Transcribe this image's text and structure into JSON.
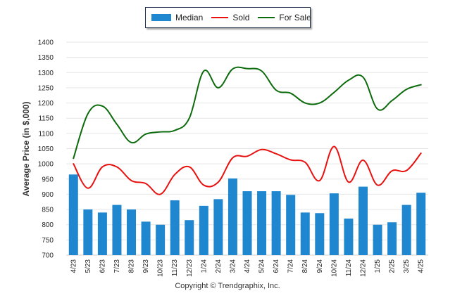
{
  "legend": {
    "median": "Median",
    "sold": "Sold",
    "for_sale": "For Sale"
  },
  "colors": {
    "median": "#1f87d0",
    "sold": "#e8110f",
    "for_sale": "#0c6b0c",
    "grid": "#e6e6e6"
  },
  "copyright": "Copyright © Trendgraphix, Inc.",
  "chart_data": {
    "type": "bar",
    "ylabel": "Average Price (in $,000)",
    "ylim": [
      700,
      1400
    ],
    "yticks": [
      700,
      750,
      800,
      850,
      900,
      950,
      1000,
      1050,
      1100,
      1150,
      1200,
      1250,
      1300,
      1350,
      1400
    ],
    "grid": true,
    "legend_position": "top-center",
    "categories": [
      "4/23",
      "5/23",
      "6/23",
      "7/23",
      "8/23",
      "9/23",
      "10/23",
      "11/23",
      "12/23",
      "1/24",
      "2/24",
      "3/24",
      "4/24",
      "5/24",
      "6/24",
      "7/24",
      "8/24",
      "9/24",
      "10/24",
      "11/24",
      "12/24",
      "1/25",
      "2/25",
      "3/25",
      "4/25"
    ],
    "series": [
      {
        "name": "Median",
        "type": "bar",
        "values": [
          965,
          850,
          840,
          865,
          850,
          810,
          800,
          880,
          815,
          862,
          884,
          952,
          910,
          910,
          910,
          898,
          840,
          838,
          903,
          820,
          925,
          800,
          808,
          865,
          905
        ]
      },
      {
        "name": "Sold",
        "type": "line",
        "values": [
          1000,
          920,
          990,
          990,
          945,
          935,
          900,
          965,
          990,
          930,
          940,
          1020,
          1025,
          1047,
          1033,
          1013,
          1005,
          945,
          1057,
          940,
          1012,
          930,
          977,
          978,
          1035
        ]
      },
      {
        "name": "For Sale",
        "type": "line",
        "values": [
          1018,
          1165,
          1190,
          1130,
          1070,
          1098,
          1105,
          1110,
          1150,
          1305,
          1250,
          1312,
          1313,
          1305,
          1242,
          1232,
          1200,
          1200,
          1235,
          1275,
          1285,
          1180,
          1208,
          1245,
          1260
        ]
      }
    ]
  }
}
